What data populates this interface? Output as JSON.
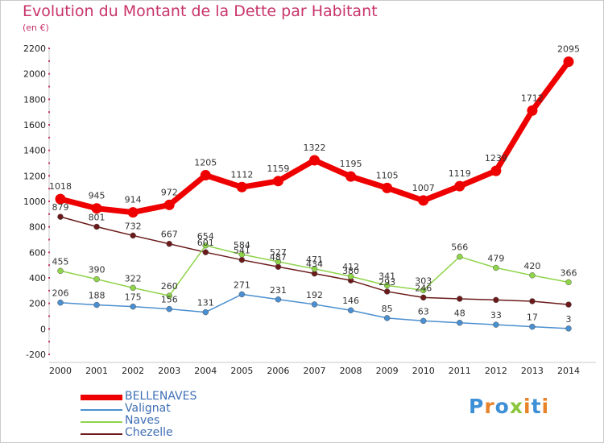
{
  "title": "Evolution du Montant de la Dette par Habitant",
  "subtitle": "(en €)",
  "logo": "Proxiti",
  "chart_data": {
    "type": "line",
    "x": [
      "2000",
      "2001",
      "2002",
      "2003",
      "2004",
      "2005",
      "2006",
      "2007",
      "2008",
      "2009",
      "2010",
      "2011",
      "2012",
      "2013",
      "2014"
    ],
    "ylim": [
      -200,
      2200
    ],
    "yticks": [
      -200,
      0,
      200,
      400,
      600,
      800,
      1000,
      1200,
      1400,
      1600,
      1800,
      2000,
      2200
    ],
    "grid": false,
    "legend_position": "bottom-left",
    "series": [
      {
        "name": "BELLENAVES",
        "color": "#ee0000",
        "values": [
          1018,
          945,
          914,
          972,
          1205,
          1112,
          1159,
          1322,
          1195,
          1105,
          1007,
          1119,
          1239,
          1712,
          2095
        ],
        "labels": [
          "1018",
          "945",
          "914",
          "972",
          "1205",
          "1112",
          "1159",
          "1322",
          "1195",
          "1105",
          "1007",
          "1119",
          "1239",
          "1712",
          "2095"
        ]
      },
      {
        "name": "Valignat",
        "color": "#4b8fd0",
        "values": [
          206,
          188,
          175,
          156,
          131,
          271,
          231,
          192,
          146,
          85,
          63,
          48,
          33,
          17,
          3
        ],
        "labels": [
          "206",
          "188",
          "175",
          "156",
          "131",
          "271",
          "231",
          "192",
          "146",
          "85",
          "63",
          "48",
          "33",
          "17",
          "3"
        ]
      },
      {
        "name": "Naves",
        "color": "#8fd44a",
        "values": [
          455,
          390,
          322,
          260,
          654,
          584,
          527,
          471,
          412,
          341,
          303,
          566,
          479,
          420,
          366
        ],
        "labels": [
          "455",
          "390",
          "322",
          "260",
          "654",
          "584",
          "527",
          "471",
          "412",
          "341",
          "303",
          "566",
          "479",
          "420",
          "366"
        ]
      },
      {
        "name": "Chezelle",
        "color": "#6b1a1a",
        "values": [
          879,
          801,
          732,
          667,
          601,
          541,
          487,
          434,
          380,
          293,
          246,
          236,
          227,
          217,
          191
        ],
        "labels": [
          "879",
          "801",
          "732",
          "667",
          "601",
          "541",
          "487",
          "434",
          "380",
          "293",
          "246",
          "",
          "",
          "",
          ""
        ]
      }
    ]
  }
}
